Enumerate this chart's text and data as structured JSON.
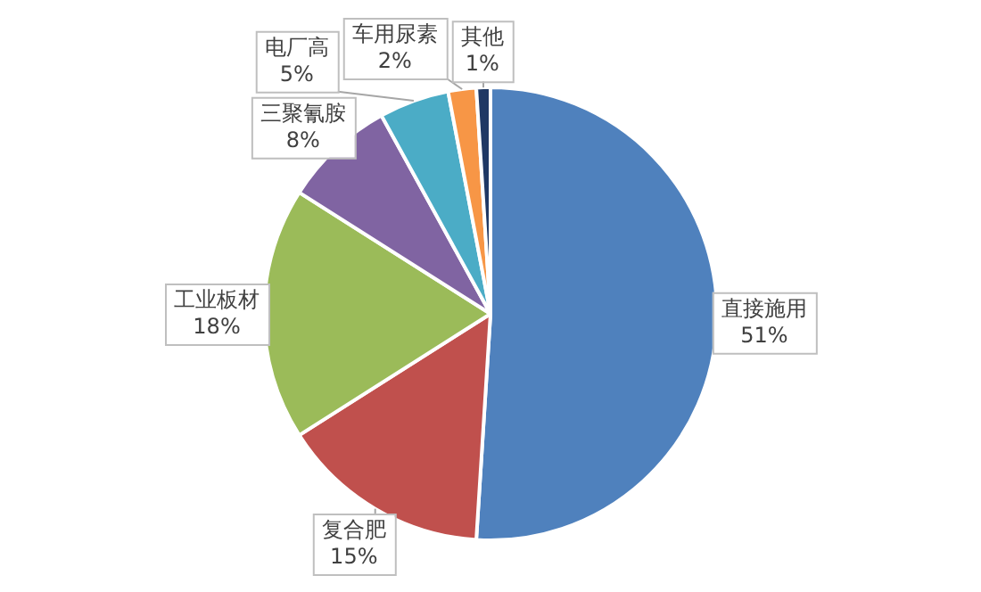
{
  "chart_data": {
    "type": "pie",
    "categories": [
      "直接施用",
      "复合肥",
      "工业板材",
      "三聚氰胺",
      "电厂高",
      "车用尿素",
      "其他"
    ],
    "values": [
      51,
      15,
      18,
      8,
      5,
      2,
      1
    ],
    "value_labels": [
      "51%",
      "15%",
      "18%",
      "8%",
      "5%",
      "2%",
      "1%"
    ],
    "colors": [
      "#4f81bd",
      "#c0504d",
      "#9bbb59",
      "#8064a2",
      "#4bacc6",
      "#f79646",
      "#1f3864"
    ],
    "legend": false
  }
}
